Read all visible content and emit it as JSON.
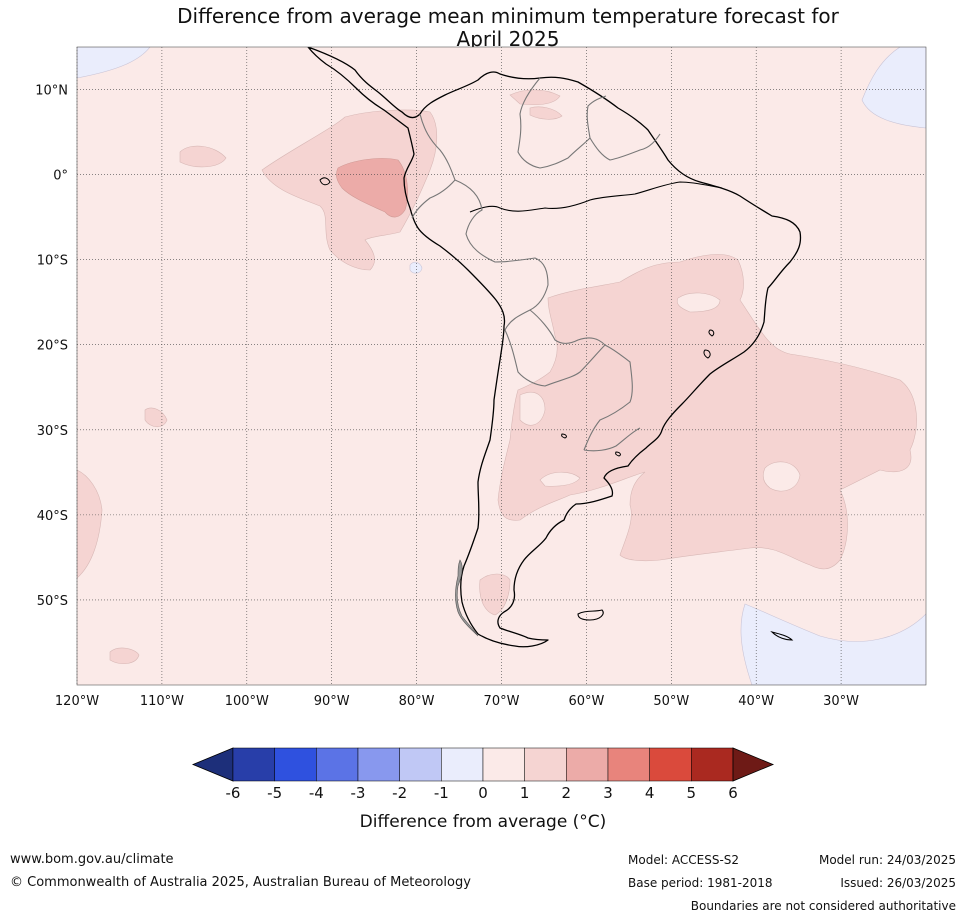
{
  "title_line1": "Difference from average mean minimum temperature forecast for",
  "title_line2": "April 2025",
  "map": {
    "lon_ticks": [
      {
        "value": -120,
        "label": "120°W"
      },
      {
        "value": -110,
        "label": "110°W"
      },
      {
        "value": -100,
        "label": "100°W"
      },
      {
        "value": -90,
        "label": "90°W"
      },
      {
        "value": -80,
        "label": "80°W"
      },
      {
        "value": -70,
        "label": "70°W"
      },
      {
        "value": -60,
        "label": "60°W"
      },
      {
        "value": -50,
        "label": "50°W"
      },
      {
        "value": -40,
        "label": "40°W"
      },
      {
        "value": -30,
        "label": "30°W"
      }
    ],
    "lat_ticks": [
      {
        "value": 10,
        "label": "10°N"
      },
      {
        "value": 0,
        "label": "0°"
      },
      {
        "value": -10,
        "label": "10°S"
      },
      {
        "value": -20,
        "label": "20°S"
      },
      {
        "value": -30,
        "label": "30°S"
      },
      {
        "value": -40,
        "label": "40°S"
      },
      {
        "value": -50,
        "label": "50°S"
      }
    ],
    "lon_range": [
      -120,
      -20
    ],
    "lat_range": [
      -60,
      15
    ],
    "grid": true,
    "base_color": "#fbeae8"
  },
  "colorbar": {
    "ticks": [
      "-6",
      "-5",
      "-4",
      "-3",
      "-2",
      "-1",
      "0",
      "1",
      "2",
      "3",
      "4",
      "5",
      "6"
    ],
    "colors": [
      "#283ea9",
      "#2f51df",
      "#5b73e6",
      "#8898ee",
      "#c0c8f5",
      "#eaedfc",
      "#fbeae8",
      "#f5d4d2",
      "#ecaba8",
      "#e8847c",
      "#da4a3c",
      "#aa2920"
    ],
    "low_arrow_color": "#1d2f7a",
    "high_arrow_color": "#6e1a16",
    "label": "Difference from average (°C)"
  },
  "footer": {
    "website": "www.bom.gov.au/climate",
    "copyright": "© Commonwealth of Australia 2025, Australian Bureau of Meteorology",
    "model": "Model: ACCESS-S2",
    "base_period": "Base period: 1981-2018",
    "model_run": "Model run: 24/03/2025",
    "issued": "Issued: 26/03/2025",
    "disclaimer": "Boundaries are not considered authoritative"
  }
}
